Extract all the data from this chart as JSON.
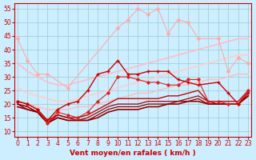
{
  "xlabel": "Vent moyen/en rafales ( km/h )",
  "xlim": [
    -0.3,
    23.3
  ],
  "ylim": [
    8,
    57
  ],
  "yticks": [
    10,
    15,
    20,
    25,
    30,
    35,
    40,
    45,
    50,
    55
  ],
  "xticks": [
    0,
    1,
    2,
    3,
    4,
    5,
    6,
    7,
    8,
    9,
    10,
    11,
    12,
    13,
    14,
    15,
    16,
    17,
    18,
    19,
    20,
    21,
    22,
    23
  ],
  "bg_color": "#cceeff",
  "grid_color": "#99cccc",
  "lines": [
    {
      "x": [
        0,
        1,
        2,
        3,
        5,
        10,
        11,
        12,
        13,
        14,
        15,
        16,
        17,
        18,
        20,
        21,
        22,
        23
      ],
      "y": [
        44,
        36,
        31,
        31,
        26,
        48,
        51,
        55,
        53,
        55,
        46,
        51,
        50,
        44,
        44,
        32,
        37,
        35
      ],
      "color": "#ffaaaa",
      "lw": 0.8,
      "marker": "D",
      "ms": 2.0,
      "zorder": 3
    },
    {
      "x": [
        0,
        1,
        2,
        3,
        4,
        5,
        6,
        7,
        8,
        9,
        10,
        11,
        12,
        13,
        14,
        15,
        16,
        17,
        18,
        19,
        20,
        21,
        22,
        23
      ],
      "y": [
        35,
        32,
        30,
        28,
        27,
        27,
        28,
        29,
        30,
        31,
        32,
        33,
        34,
        35,
        36,
        37,
        38,
        39,
        40,
        41,
        42,
        43,
        44,
        44
      ],
      "color": "#ffbbcc",
      "lw": 1.2,
      "marker": null,
      "ms": 0,
      "zorder": 2
    },
    {
      "x": [
        0,
        1,
        2,
        3,
        4,
        5,
        6,
        7,
        8,
        9,
        10,
        11,
        12,
        13,
        14,
        15,
        16,
        17,
        18,
        19,
        20,
        21,
        22,
        23
      ],
      "y": [
        26,
        24,
        23,
        22,
        21,
        21,
        22,
        23,
        24,
        25,
        26,
        27,
        28,
        29,
        30,
        31,
        32,
        33,
        34,
        35,
        36,
        37,
        38,
        38
      ],
      "color": "#ffcccc",
      "lw": 1.2,
      "marker": null,
      "ms": 0,
      "zorder": 2
    },
    {
      "x": [
        0,
        1,
        2,
        3,
        4,
        5,
        6,
        7,
        8,
        9,
        10,
        11,
        12,
        13,
        14,
        15,
        16,
        17,
        18,
        19,
        20,
        21,
        22,
        23
      ],
      "y": [
        21,
        20,
        19,
        18,
        18,
        18,
        19,
        19,
        20,
        21,
        22,
        23,
        24,
        24,
        25,
        26,
        27,
        27,
        28,
        29,
        29,
        30,
        31,
        31
      ],
      "color": "#ffbbbb",
      "lw": 1.0,
      "marker": null,
      "ms": 0,
      "zorder": 2
    },
    {
      "x": [
        0,
        1,
        2,
        3,
        4,
        5,
        6,
        7,
        8,
        9,
        10,
        11,
        12,
        13,
        14,
        15,
        16,
        17,
        18,
        20,
        21,
        22,
        23
      ],
      "y": [
        21,
        20,
        18,
        14,
        18,
        20,
        21,
        25,
        31,
        32,
        36,
        31,
        31,
        32,
        32,
        32,
        29,
        28,
        27,
        28,
        24,
        20,
        24
      ],
      "color": "#cc0000",
      "lw": 1.0,
      "marker": "+",
      "ms": 3.5,
      "zorder": 5
    },
    {
      "x": [
        0,
        1,
        2,
        3,
        4,
        5,
        6,
        7,
        8,
        9,
        10,
        11,
        12,
        13,
        14,
        15,
        16,
        17,
        18,
        19,
        20,
        21,
        22,
        23
      ],
      "y": [
        21,
        20,
        18,
        13,
        17,
        16,
        15,
        17,
        21,
        24,
        30,
        30,
        29,
        28,
        28,
        27,
        27,
        29,
        29,
        21,
        21,
        20,
        20,
        25
      ],
      "color": "#dd2222",
      "lw": 0.8,
      "marker": "D",
      "ms": 1.8,
      "zorder": 4
    },
    {
      "x": [
        0,
        1,
        2,
        3,
        4,
        5,
        6,
        7,
        8,
        9,
        10,
        11,
        12,
        13,
        14,
        15,
        16,
        17,
        18,
        19,
        20,
        21,
        22,
        23
      ],
      "y": [
        20,
        19,
        17,
        14,
        16,
        15,
        15,
        16,
        18,
        20,
        22,
        22,
        22,
        22,
        22,
        23,
        23,
        24,
        25,
        21,
        21,
        21,
        21,
        25
      ],
      "color": "#cc0000",
      "lw": 1.0,
      "marker": null,
      "ms": 0,
      "zorder": 3
    },
    {
      "x": [
        0,
        1,
        2,
        3,
        4,
        5,
        6,
        7,
        8,
        9,
        10,
        11,
        12,
        13,
        14,
        15,
        16,
        17,
        18,
        19,
        20,
        21,
        22,
        23
      ],
      "y": [
        20,
        19,
        17,
        13,
        16,
        15,
        14,
        15,
        17,
        19,
        20,
        20,
        20,
        21,
        21,
        21,
        21,
        22,
        23,
        21,
        20,
        20,
        20,
        24
      ],
      "color": "#aa0000",
      "lw": 0.9,
      "marker": null,
      "ms": 0,
      "zorder": 3
    },
    {
      "x": [
        0,
        1,
        2,
        3,
        4,
        5,
        6,
        7,
        8,
        9,
        10,
        11,
        12,
        13,
        14,
        15,
        16,
        17,
        18,
        19,
        20,
        21,
        22,
        23
      ],
      "y": [
        20,
        18,
        17,
        13,
        15,
        14,
        14,
        14,
        16,
        18,
        19,
        19,
        19,
        20,
        20,
        20,
        21,
        21,
        22,
        20,
        20,
        20,
        20,
        23
      ],
      "color": "#880000",
      "lw": 0.9,
      "marker": null,
      "ms": 0,
      "zorder": 3
    },
    {
      "x": [
        0,
        1,
        2,
        3,
        4,
        5,
        6,
        7,
        8,
        9,
        10,
        11,
        12,
        13,
        14,
        15,
        16,
        17,
        18,
        19,
        20,
        21,
        22,
        23
      ],
      "y": [
        19,
        18,
        17,
        13,
        15,
        14,
        14,
        14,
        15,
        17,
        18,
        18,
        18,
        19,
        19,
        20,
        20,
        21,
        21,
        20,
        20,
        20,
        20,
        23
      ],
      "color": "#990000",
      "lw": 1.2,
      "marker": null,
      "ms": 0,
      "zorder": 2
    }
  ],
  "tick_font_size": 5.5,
  "label_font_size": 6.5,
  "tick_color": "#cc0000",
  "xlabel_color": "#cc0000"
}
